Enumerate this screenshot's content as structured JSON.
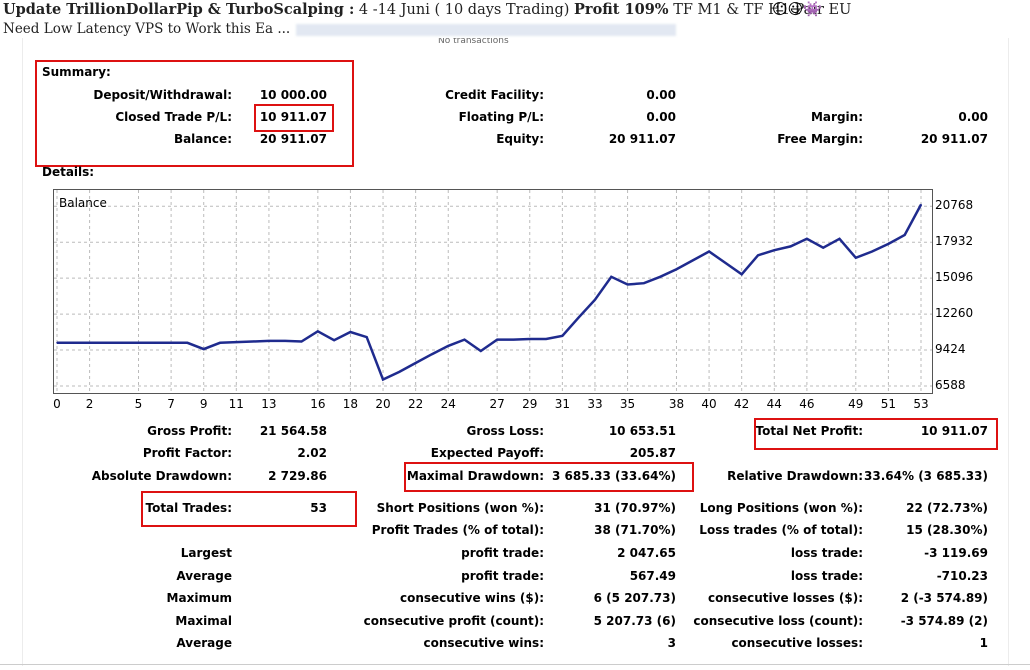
{
  "post": {
    "title_bold": "Update TrillionDollarPip & TurboScalping :",
    "title_dates": " 4 -14 Juni ( 10 days Trading) ",
    "title_profit": "Profit 109%",
    "title_rest": " TF M1 & TF H1 Pair EU",
    "subtitle": "Need Low Latency VPS to Work this Ea ...",
    "overlap_text": "No transactions"
  },
  "summary": {
    "heading": "Summary:",
    "deposit_label": "Deposit/Withdrawal:",
    "deposit_value": "10 000.00",
    "closed_label": "Closed Trade P/L:",
    "closed_value": "10 911.07",
    "balance_label": "Balance:",
    "balance_value": "20 911.07",
    "credit_label": "Credit Facility:",
    "credit_value": "0.00",
    "floating_label": "Floating P/L:",
    "floating_value": "0.00",
    "equity_label": "Equity:",
    "equity_value": "20 911.07",
    "margin_label": "Margin:",
    "margin_value": "0.00",
    "free_margin_label": "Free Margin:",
    "free_margin_value": "20 911.07"
  },
  "details": {
    "heading": "Details:",
    "gross_profit_label": "Gross Profit:",
    "gross_profit_value": "21 564.58",
    "gross_loss_label": "Gross Loss:",
    "gross_loss_value": "10 653.51",
    "total_net_label": "Total Net Profit:",
    "total_net_value": "10 911.07",
    "profit_factor_label": "Profit Factor:",
    "profit_factor_value": "2.02",
    "expected_payoff_label": "Expected Payoff:",
    "expected_payoff_value": "205.87",
    "abs_dd_label": "Absolute Drawdown:",
    "abs_dd_value": "2 729.86",
    "max_dd_label": "Maximal Drawdown:",
    "max_dd_value": "3 685.33 (33.64%)",
    "rel_dd_label": "Relative Drawdown:",
    "rel_dd_value": "33.64% (3 685.33)",
    "total_trades_label": "Total Trades:",
    "total_trades_value": "53",
    "short_label": "Short Positions (won %):",
    "short_value": "31 (70.97%)",
    "long_label": "Long Positions (won %):",
    "long_value": "22 (72.73%)",
    "profit_trades_label": "Profit Trades (% of total):",
    "profit_trades_value": "38 (71.70%)",
    "loss_trades_label": "Loss trades (% of total):",
    "loss_trades_value": "15 (28.30%)",
    "rows": [
      {
        "c1": "Largest",
        "c2": "profit trade:",
        "v2": "2 047.65",
        "c3": "loss trade:",
        "v3": "-3 119.69"
      },
      {
        "c1": "Average",
        "c2": "profit trade:",
        "v2": "567.49",
        "c3": "loss trade:",
        "v3": "-710.23"
      },
      {
        "c1": "Maximum",
        "c2": "consecutive wins ($):",
        "v2": "6 (5 207.73)",
        "c3": "consecutive losses ($):",
        "v3": "2 (-3 574.89)"
      },
      {
        "c1": "Maximal",
        "c2": "consecutive profit (count):",
        "v2": "5 207.73 (6)",
        "c3": "consecutive loss (count):",
        "v3": "-3 574.89 (2)"
      },
      {
        "c1": "Average",
        "c2": "consecutive wins:",
        "v2": "3",
        "c3": "consecutive losses:",
        "v3": "1"
      }
    ]
  },
  "chart_data": {
    "type": "line",
    "title": "Balance",
    "series": [
      {
        "name": "Balance",
        "values": [
          10000,
          10000,
          10000,
          10000,
          10000,
          10000,
          10000,
          10000,
          10000,
          9500,
          10000,
          10050,
          10100,
          10150,
          10150,
          10100,
          10900,
          10200,
          10850,
          10450,
          7100,
          7700,
          8400,
          9100,
          9750,
          10250,
          9350,
          10250,
          10250,
          10300,
          10300,
          10550,
          12000,
          13400,
          15200,
          14600,
          14700,
          15200,
          15800,
          16500,
          17200,
          16300,
          15400,
          16900,
          17300,
          17600,
          18200,
          17500,
          18200,
          16700,
          17200,
          17800,
          18500,
          20900
        ]
      }
    ],
    "x": [
      0,
      1,
      2,
      3,
      4,
      5,
      6,
      7,
      8,
      9,
      10,
      11,
      12,
      13,
      14,
      15,
      16,
      17,
      18,
      19,
      20,
      21,
      22,
      23,
      24,
      25,
      26,
      27,
      28,
      29,
      30,
      31,
      32,
      33,
      34,
      35,
      36,
      37,
      38,
      39,
      40,
      41,
      42,
      43,
      44,
      45,
      46,
      47,
      48,
      49,
      50,
      51,
      52,
      53
    ],
    "x_ticks": [
      "0",
      "2",
      "5",
      "7",
      "9",
      "11",
      "13",
      "16",
      "18",
      "20",
      "22",
      "24",
      "27",
      "29",
      "31",
      "33",
      "35",
      "38",
      "40",
      "42",
      "44",
      "46",
      "49",
      "51",
      "53"
    ],
    "y_ticks": [
      "20768",
      "17932",
      "15096",
      "12260",
      "9424",
      "6588"
    ],
    "ylim": [
      6588,
      21500
    ],
    "grid": true,
    "line_color": "#1f2b8e"
  }
}
